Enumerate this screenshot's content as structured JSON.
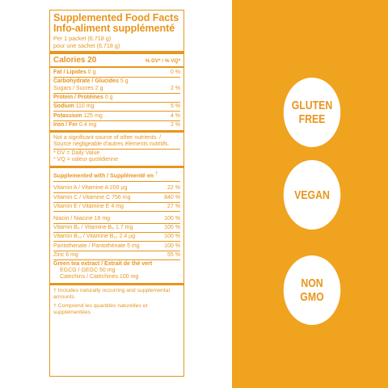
{
  "facts": {
    "title_en": "Supplemented Food Facts",
    "title_fr": "Info-aliment supplémenté",
    "serving_en": "Per 1 packet (6.718 g)",
    "serving_fr": "pour une sachet (6.718 g)",
    "calories_label": "Calories 20",
    "dv_header": "% DV* / % VQ*",
    "nutrients": [
      {
        "name": "Fat / Lipides",
        "amount": "0 g",
        "dv": "0 %"
      },
      {
        "name": "Carbohydrate / Glucides",
        "amount": "5 g",
        "dv": ""
      },
      {
        "name": "Sugars / Sucres",
        "amount": "2 g",
        "dv": "2 %"
      },
      {
        "name": "Protein / Protéines",
        "amount": "0 g",
        "dv": ""
      },
      {
        "name": "Sodium",
        "amount": "110 mg",
        "dv": "5 %"
      },
      {
        "name": "Potassium",
        "amount": "125 mg",
        "dv": "4 %"
      },
      {
        "name": "Iron / Fer",
        "amount": "0.4 mg",
        "dv": "2 %"
      }
    ],
    "not_significant": "Not a significant source of other nutrients. / Source négligeable d'autres éléments nutritifs.",
    "dv_note_1": "* DV = Daily Value",
    "dv_note_2": "* VQ = valeur quotidienne",
    "supplemented_header": "Supplemented with / Supplémenté en",
    "supplemented_header_mark": "†",
    "supplements": [
      {
        "name": "Vitamin A / Vitamine A",
        "amount": "200 µg",
        "dv": "22 %"
      },
      {
        "name": "Vitamin C / Vitamine C",
        "amount": "756 mg",
        "dv": "840 %"
      },
      {
        "name": "Vitamin E / Vitamine E",
        "amount": "4 mg",
        "dv": "27 %"
      },
      {
        "name": "Niacin / Niacine",
        "amount": "16 mg",
        "dv": "100 %"
      },
      {
        "name": "Vitamin B₆ / Vitamine B₆",
        "amount": "1.7 mg",
        "dv": "100 %"
      },
      {
        "name": "Vitamin B₁₂ / Vitamine B₁₂",
        "amount": "2.4 µg",
        "dv": "100 %"
      },
      {
        "name": "Pantothenate / Pantothénate",
        "amount": "5 mg",
        "dv": "100 %"
      },
      {
        "name": "Zinc",
        "amount": "6 mg",
        "dv": "55 %"
      }
    ],
    "green_tea_title": "Green tea extract / Extrait de thé vert",
    "green_tea_egcg": "EGCG / GEGC 50 mg",
    "green_tea_catechins": "Catechins / Catéchines 100 mg",
    "footnote_en": "† Includes naturally occurring and supplemental amounts",
    "footnote_fr": "† Comprend les quantités naturelles et supplémentées"
  },
  "badges": [
    {
      "line1": "GLUTEN",
      "line2": "FREE"
    },
    {
      "line1": "VEGAN",
      "line2": ""
    },
    {
      "line1": "NON",
      "line2": "GMO"
    }
  ],
  "colors": {
    "accent": "#e8951e",
    "panel": "#f0a31f",
    "background": "#ffffff"
  }
}
